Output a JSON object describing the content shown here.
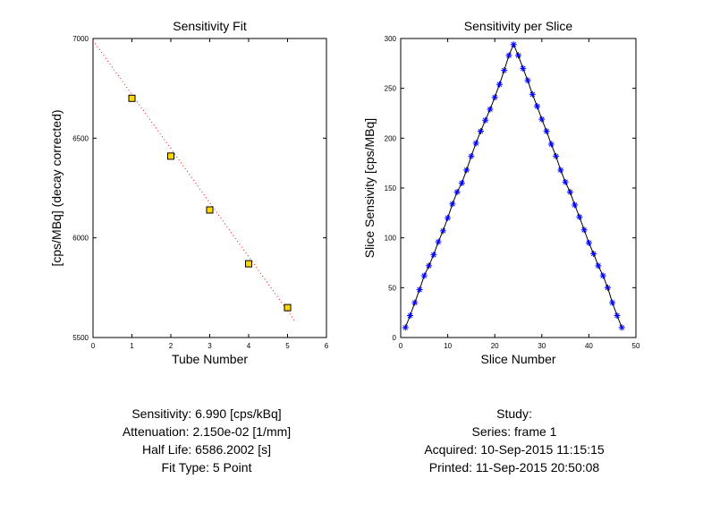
{
  "chart_data": [
    {
      "type": "scatter",
      "title": "Sensitivity Fit",
      "xlabel": "Tube Number",
      "ylabel": "[cps/MBq] (decay corrected)",
      "xlim": [
        0,
        6
      ],
      "ylim": [
        5500,
        7000
      ],
      "xticks": [
        "0",
        "1",
        "2",
        "3",
        "4",
        "5",
        "6"
      ],
      "yticks": [
        "5500",
        "6000",
        "6500",
        "7000"
      ],
      "grid": false,
      "series": [
        {
          "values": [
            [
              1,
              6700
            ],
            [
              2,
              6410
            ],
            [
              3,
              6140
            ],
            [
              4,
              5870
            ],
            [
              5,
              5650
            ]
          ],
          "marker": "square",
          "color": "#ffd700"
        }
      ],
      "fit_line": {
        "x": [
          0,
          5.2
        ],
        "y": [
          6990,
          5580
        ],
        "color": "#ff0000",
        "style": "dotted"
      }
    },
    {
      "type": "line",
      "title": "Sensitivity per Slice",
      "xlabel": "Slice Number",
      "ylabel": "Slice Sensivity [cps/MBq]",
      "xlim": [
        0,
        50
      ],
      "ylim": [
        0,
        300
      ],
      "xticks": [
        "0",
        "10",
        "20",
        "30",
        "40",
        "50"
      ],
      "yticks": [
        "0",
        "50",
        "100",
        "150",
        "200",
        "250",
        "300"
      ],
      "grid": false,
      "series": [
        {
          "color": "#0000ff",
          "marker": "asterisk",
          "x": [
            1,
            2,
            3,
            4,
            5,
            6,
            7,
            8,
            9,
            10,
            11,
            12,
            13,
            14,
            15,
            16,
            17,
            18,
            19,
            20,
            21,
            22,
            23,
            24,
            25,
            26,
            27,
            28,
            29,
            30,
            31,
            32,
            33,
            34,
            35,
            36,
            37,
            38,
            39,
            40,
            41,
            42,
            43,
            44,
            45,
            46,
            47
          ],
          "values": [
            10,
            22,
            35,
            48,
            62,
            72,
            83,
            96,
            107,
            120,
            134,
            146,
            155,
            168,
            182,
            195,
            207,
            218,
            229,
            241,
            254,
            268,
            283,
            294,
            283,
            270,
            258,
            244,
            232,
            219,
            207,
            194,
            182,
            168,
            156,
            146,
            133,
            121,
            108,
            95,
            84,
            72,
            62,
            50,
            35,
            22,
            10
          ]
        }
      ]
    }
  ],
  "info_left": {
    "sensitivity": "Sensitivity: 6.990 [cps/kBq]",
    "attenuation": "Attenuation: 2.150e-02 [1/mm]",
    "half_life": "Half Life: 6586.2002 [s]",
    "fit_type": "Fit Type: 5 Point"
  },
  "info_right": {
    "study": "Study:",
    "series": "Series: frame 1",
    "acquired": "Acquired: 10-Sep-2015 11:15:15",
    "printed": "Printed: 11-Sep-2015 20:50:08"
  }
}
